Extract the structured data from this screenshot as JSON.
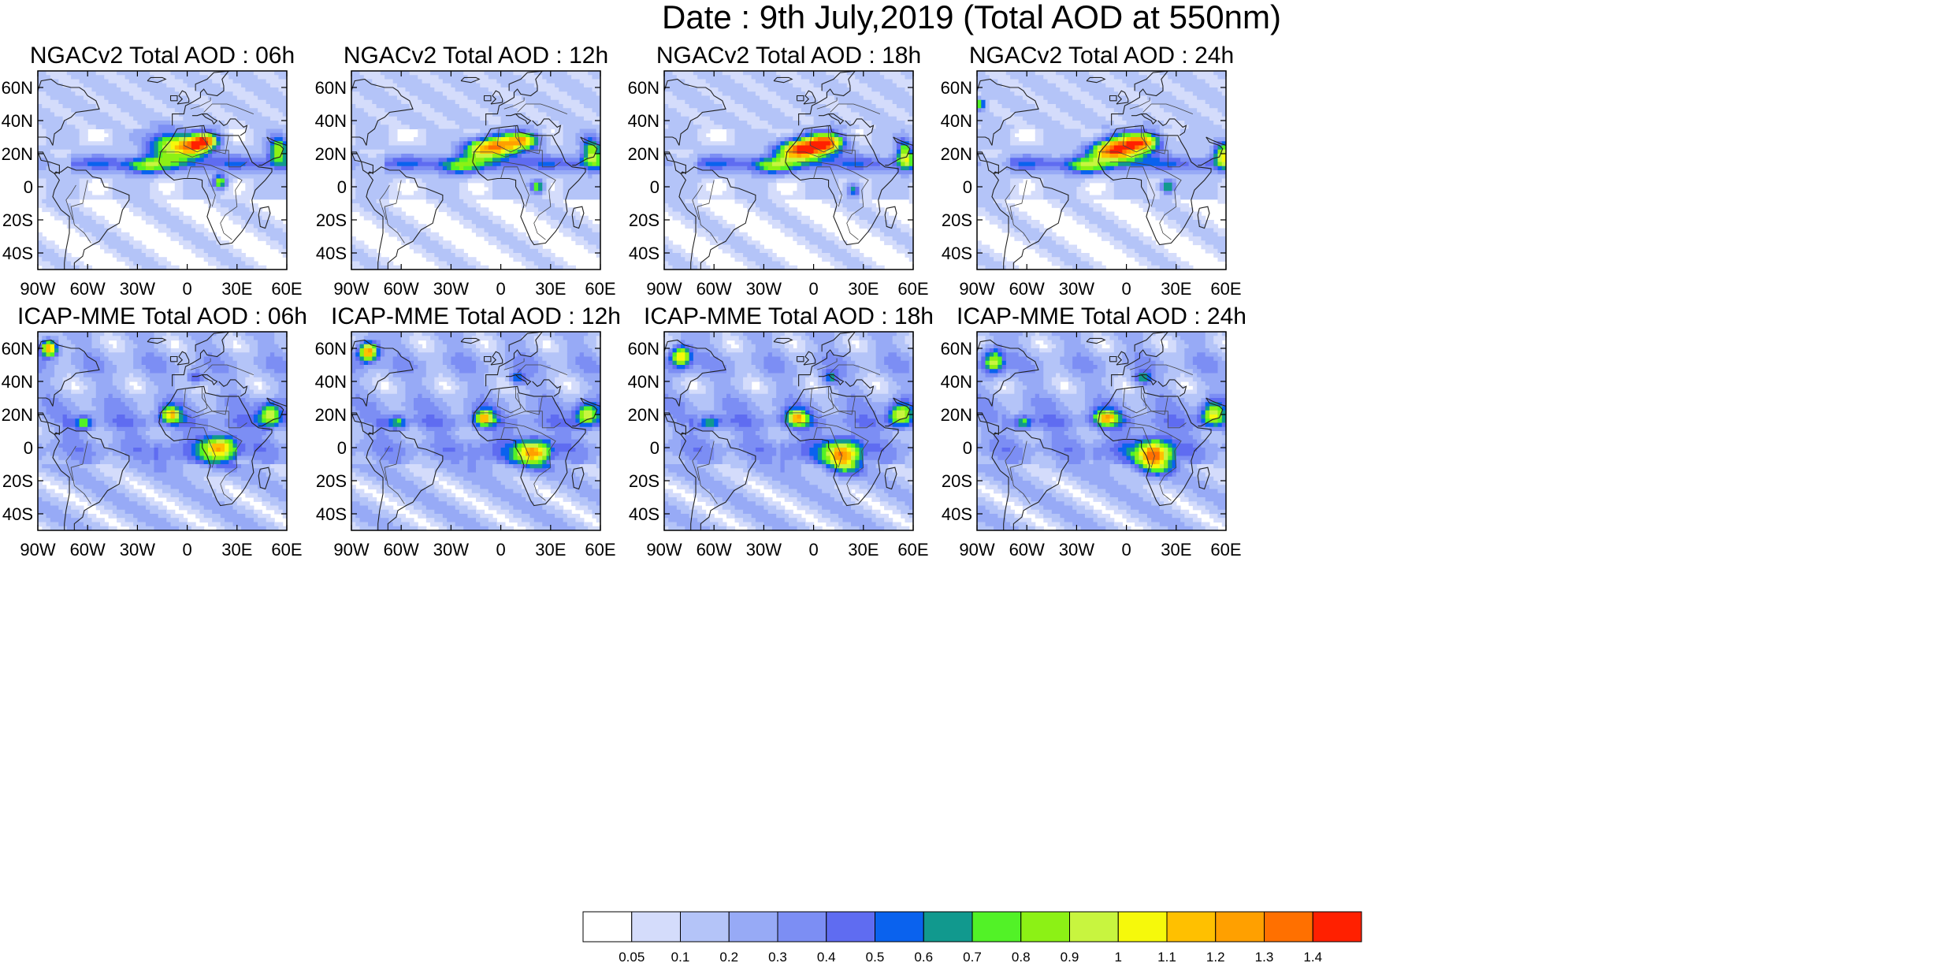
{
  "title": "Date : 9th July,2019 (Total AOD at 550nm)",
  "chart_data": {
    "type": "heatmap",
    "panels": [
      {
        "row": 0,
        "col": 0,
        "title": "NGACv2 Total AOD : 06h",
        "model": "NGACv2",
        "hour": 6,
        "blobs": [
          [
            -10,
            25,
            14,
            9,
            0.85
          ],
          [
            5,
            24,
            10,
            6,
            0.9
          ],
          [
            12,
            28,
            8,
            5,
            0.85
          ],
          [
            55,
            22,
            6,
            8,
            0.8
          ],
          [
            20,
            3,
            4,
            4,
            0.8
          ],
          [
            -25,
            12,
            12,
            5,
            0.45
          ]
        ]
      },
      {
        "row": 0,
        "col": 1,
        "title": "NGACv2 Total AOD : 12h",
        "model": "NGACv2",
        "hour": 12,
        "blobs": [
          [
            -12,
            23,
            12,
            6,
            0.85
          ],
          [
            2,
            25,
            12,
            7,
            0.9
          ],
          [
            15,
            28,
            9,
            5,
            0.85
          ],
          [
            55,
            21,
            6,
            9,
            0.8
          ],
          [
            22,
            0,
            4,
            4,
            0.8
          ],
          [
            -25,
            12,
            12,
            5,
            0.45
          ]
        ]
      },
      {
        "row": 0,
        "col": 2,
        "title": "NGACv2 Total AOD : 18h",
        "model": "NGACv2",
        "hour": 18,
        "blobs": [
          [
            -12,
            22,
            12,
            6,
            0.85
          ],
          [
            0,
            24,
            12,
            7,
            1.0
          ],
          [
            10,
            27,
            10,
            6,
            0.85
          ],
          [
            55,
            20,
            5,
            9,
            0.8
          ],
          [
            24,
            -2,
            4,
            4,
            0.6
          ],
          [
            -25,
            12,
            12,
            5,
            0.45
          ]
        ]
      },
      {
        "row": 0,
        "col": 3,
        "title": "NGACv2 Total AOD : 24h",
        "model": "NGACv2",
        "hour": 24,
        "blobs": [
          [
            -12,
            22,
            12,
            6,
            0.85
          ],
          [
            0,
            24,
            12,
            8,
            0.95
          ],
          [
            12,
            27,
            10,
            6,
            0.85
          ],
          [
            58,
            20,
            5,
            8,
            0.8
          ],
          [
            25,
            0,
            4,
            4,
            0.8
          ],
          [
            -88,
            50,
            3,
            3,
            0.8
          ],
          [
            -25,
            12,
            12,
            5,
            0.45
          ]
        ]
      },
      {
        "row": 1,
        "col": 0,
        "title": "ICAP-MME Total AOD : 06h",
        "model": "ICAP-MME",
        "hour": 6,
        "blobs": [
          [
            -83,
            60,
            5,
            5,
            1.2
          ],
          [
            -10,
            20,
            6,
            5,
            0.85
          ],
          [
            20,
            0,
            10,
            8,
            0.85
          ],
          [
            -62,
            15,
            5,
            4,
            0.5
          ],
          [
            50,
            20,
            7,
            7,
            0.8
          ],
          [
            5,
            42,
            5,
            4,
            0.45
          ]
        ]
      },
      {
        "row": 1,
        "col": 1,
        "title": "ICAP-MME Total AOD : 12h",
        "model": "ICAP-MME",
        "hour": 12,
        "blobs": [
          [
            -80,
            58,
            6,
            6,
            1.2
          ],
          [
            -10,
            18,
            6,
            5,
            0.85
          ],
          [
            20,
            -3,
            10,
            8,
            0.9
          ],
          [
            -62,
            15,
            5,
            4,
            0.5
          ],
          [
            52,
            20,
            7,
            7,
            0.8
          ],
          [
            10,
            42,
            5,
            4,
            0.45
          ]
        ]
      },
      {
        "row": 1,
        "col": 2,
        "title": "ICAP-MME Total AOD : 18h",
        "model": "ICAP-MME",
        "hour": 18,
        "blobs": [
          [
            -80,
            55,
            6,
            7,
            1.0
          ],
          [
            -10,
            18,
            7,
            5,
            0.85
          ],
          [
            18,
            -5,
            10,
            10,
            0.95
          ],
          [
            -62,
            15,
            5,
            4,
            0.5
          ],
          [
            52,
            20,
            7,
            7,
            0.8
          ],
          [
            10,
            42,
            5,
            4,
            0.45
          ]
        ]
      },
      {
        "row": 1,
        "col": 3,
        "title": "ICAP-MME Total AOD : 24h",
        "model": "ICAP-MME",
        "hour": 24,
        "blobs": [
          [
            -80,
            52,
            6,
            8,
            0.8
          ],
          [
            -12,
            18,
            8,
            5,
            0.85
          ],
          [
            17,
            -5,
            10,
            10,
            1.05
          ],
          [
            -62,
            15,
            5,
            4,
            0.5
          ],
          [
            52,
            20,
            7,
            7,
            0.8
          ],
          [
            10,
            42,
            5,
            4,
            0.45
          ]
        ]
      }
    ],
    "lon_range": [
      -90,
      60
    ],
    "lat_range": [
      -50,
      70
    ],
    "xticks": [
      -90,
      -60,
      -30,
      0,
      30,
      60
    ],
    "xtick_labels": [
      "90W",
      "60W",
      "30W",
      "0",
      "30E",
      "60E"
    ],
    "yticks": [
      60,
      40,
      20,
      0,
      -20,
      -40
    ],
    "ytick_labels": [
      "60N",
      "40N",
      "20N",
      "0",
      "20S",
      "40S"
    ],
    "colorbar": {
      "levels": [
        0.05,
        0.1,
        0.2,
        0.3,
        0.4,
        0.5,
        0.6,
        0.7,
        0.8,
        0.9,
        1,
        1.1,
        1.2,
        1.3,
        1.4
      ],
      "labels": [
        "0.05",
        "0.1",
        "0.2",
        "0.3",
        "0.4",
        "0.5",
        "0.6",
        "0.7",
        "0.8",
        "0.9",
        "1",
        "1.1",
        "1.2",
        "1.3",
        "1.4"
      ],
      "colors": [
        "#ffffff",
        "#d4dcfb",
        "#b4c4f8",
        "#97aaf6",
        "#7c8ef4",
        "#5f6cf1",
        "#0a62ee",
        "#11998e",
        "#52f227",
        "#8cf115",
        "#c8f53f",
        "#f6f90b",
        "#ffc000",
        "#ffa000",
        "#ff7000",
        "#ff2000"
      ]
    },
    "grid": false,
    "legend_position": "bottom"
  }
}
